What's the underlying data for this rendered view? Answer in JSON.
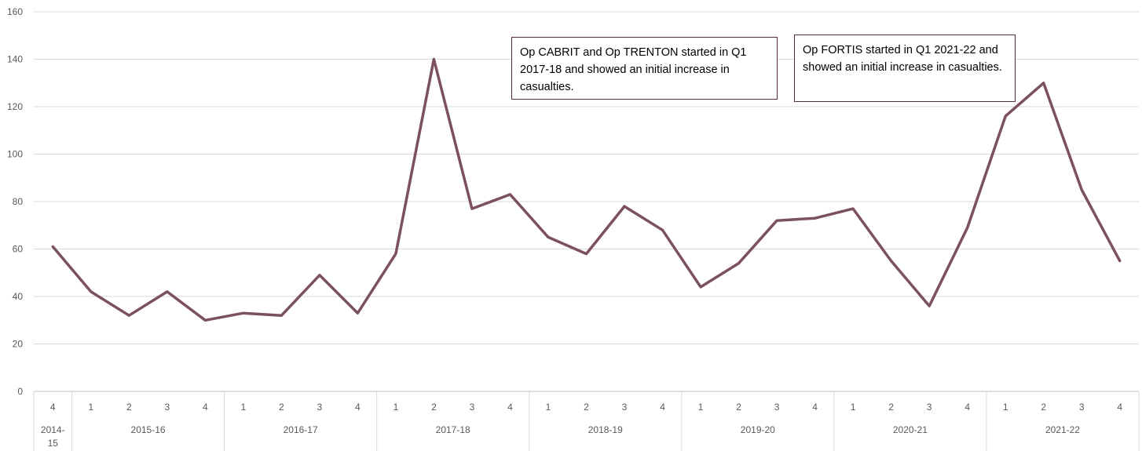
{
  "chart_data": {
    "type": "line",
    "ylim": [
      0,
      160
    ],
    "yticks": [
      0,
      20,
      40,
      60,
      80,
      100,
      120,
      140,
      160
    ],
    "grid": true,
    "line_color": "#7b5060",
    "quarters": [
      "4",
      "1",
      "2",
      "3",
      "4",
      "1",
      "2",
      "3",
      "4",
      "1",
      "2",
      "3",
      "4",
      "1",
      "2",
      "3",
      "4",
      "1",
      "2",
      "3",
      "4",
      "1",
      "2",
      "3",
      "4",
      "1",
      "2",
      "3",
      "4"
    ],
    "years": [
      {
        "label": "2014-\n15",
        "count": 1
      },
      {
        "label": "2015-16",
        "count": 4
      },
      {
        "label": "2016-17",
        "count": 4
      },
      {
        "label": "2017-18",
        "count": 4
      },
      {
        "label": "2018-19",
        "count": 4
      },
      {
        "label": "2019-20",
        "count": 4
      },
      {
        "label": "2020-21",
        "count": 4
      },
      {
        "label": "2021-22",
        "count": 4
      }
    ],
    "values": [
      61,
      42,
      32,
      42,
      30,
      33,
      32,
      49,
      33,
      58,
      140,
      77,
      83,
      65,
      58,
      78,
      68,
      44,
      54,
      72,
      73,
      77,
      55,
      36,
      69,
      116,
      130,
      85,
      55
    ],
    "annotations": [
      {
        "text": "Op CABRIT and Op TRENTON started in Q1 2017-18 and showed an initial increase in casualties."
      },
      {
        "text": "Op FORTIS started in Q1 2021-22 and showed an initial increase in casualties."
      }
    ]
  }
}
